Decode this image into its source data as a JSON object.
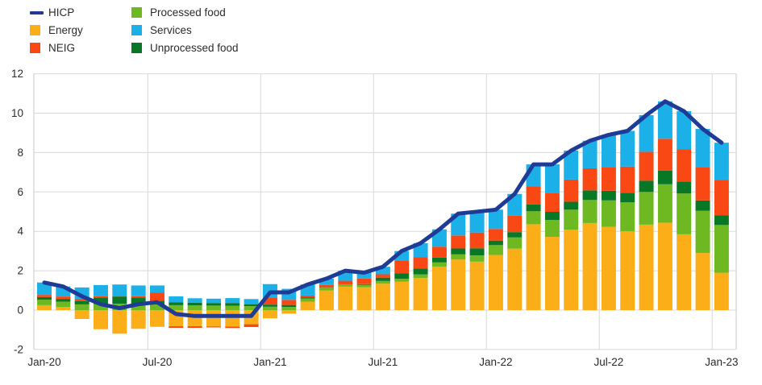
{
  "legend": {
    "items": [
      {
        "label": "HICP",
        "color": "#1E3C96",
        "swatch": "line"
      },
      {
        "label": "Energy",
        "color": "#FBAE17",
        "swatch": "square"
      },
      {
        "label": "NEIG",
        "color": "#F94814",
        "swatch": "square"
      },
      {
        "label": "Processed food",
        "color": "#6EB821",
        "swatch": "square"
      },
      {
        "label": "Services",
        "color": "#1CB0E9",
        "swatch": "square"
      },
      {
        "label": "Unprocessed food",
        "color": "#097826",
        "swatch": "square"
      }
    ]
  },
  "chart_data": {
    "type": "bar",
    "subtype": "stacked-bar-with-line",
    "title": "",
    "xlabel": "",
    "ylabel": "",
    "ylim": [
      -2,
      12
    ],
    "y_ticks": [
      -2,
      0,
      2,
      4,
      6,
      8,
      10,
      12
    ],
    "x_tick_labels": [
      "Jan-20",
      "Jul-20",
      "Jan-21",
      "Jul-21",
      "Jan-22",
      "Jul-22",
      "Jan-23"
    ],
    "grid": true,
    "legend_position": "top-left",
    "categories": [
      "Jan-20",
      "Feb-20",
      "Mar-20",
      "Apr-20",
      "May-20",
      "Jun-20",
      "Jul-20",
      "Aug-20",
      "Sep-20",
      "Oct-20",
      "Nov-20",
      "Dec-20",
      "Jan-21",
      "Feb-21",
      "Mar-21",
      "Apr-21",
      "May-21",
      "Jun-21",
      "Jul-21",
      "Aug-21",
      "Sep-21",
      "Oct-21",
      "Nov-21",
      "Dec-21",
      "Jan-22",
      "Feb-22",
      "Mar-22",
      "Apr-22",
      "May-22",
      "Jun-22",
      "Jul-22",
      "Aug-22",
      "Sep-22",
      "Oct-22",
      "Nov-22",
      "Dec-22",
      "Jan-23"
    ],
    "series": [
      {
        "name": "Energy",
        "type": "bar",
        "color": "#FBAE17",
        "values": [
          0.25,
          0.15,
          -0.45,
          -0.97,
          -1.2,
          -0.95,
          -0.85,
          -0.82,
          -0.82,
          -0.83,
          -0.84,
          -0.72,
          -0.42,
          -0.18,
          0.43,
          1.0,
          1.19,
          1.16,
          1.34,
          1.44,
          1.63,
          2.21,
          2.57,
          2.46,
          2.8,
          3.12,
          4.36,
          3.72,
          4.08,
          4.42,
          4.23,
          4.0,
          4.34,
          4.44,
          3.85,
          2.9,
          1.9
        ]
      },
      {
        "name": "Processed food",
        "type": "bar",
        "color": "#6EB821",
        "values": [
          0.28,
          0.28,
          0.29,
          0.31,
          0.32,
          0.31,
          0.28,
          0.25,
          0.24,
          0.23,
          0.22,
          0.2,
          0.17,
          0.16,
          0.16,
          0.14,
          0.12,
          0.12,
          0.14,
          0.15,
          0.18,
          0.21,
          0.26,
          0.32,
          0.5,
          0.57,
          0.66,
          0.86,
          1.02,
          1.17,
          1.34,
          1.47,
          1.66,
          1.95,
          2.07,
          2.14,
          2.42
        ]
      },
      {
        "name": "Unprocessed food",
        "type": "bar",
        "color": "#097826",
        "values": [
          0.13,
          0.14,
          0.16,
          0.33,
          0.37,
          0.33,
          0.2,
          0.15,
          0.13,
          0.13,
          0.14,
          0.1,
          0.11,
          0.1,
          0.06,
          0.02,
          0.0,
          0.04,
          0.17,
          0.27,
          0.3,
          0.25,
          0.3,
          0.36,
          0.23,
          0.27,
          0.35,
          0.41,
          0.4,
          0.49,
          0.49,
          0.49,
          0.57,
          0.69,
          0.61,
          0.53,
          0.5
        ]
      },
      {
        "name": "NEIG",
        "type": "bar",
        "color": "#F94814",
        "values": [
          0.11,
          0.12,
          0.12,
          0.07,
          0.04,
          0.06,
          0.4,
          -0.08,
          -0.08,
          -0.05,
          -0.07,
          -0.14,
          0.35,
          0.26,
          0.09,
          0.12,
          0.18,
          0.28,
          0.17,
          0.66,
          0.57,
          0.55,
          0.66,
          0.8,
          0.59,
          0.84,
          0.91,
          0.97,
          1.13,
          1.12,
          1.21,
          1.33,
          1.47,
          1.62,
          1.63,
          1.7,
          1.8
        ]
      },
      {
        "name": "Services",
        "type": "bar",
        "color": "#1CB0E9",
        "values": [
          0.63,
          0.51,
          0.58,
          0.56,
          0.57,
          0.55,
          0.37,
          0.3,
          0.23,
          0.22,
          0.25,
          0.26,
          0.69,
          0.56,
          0.56,
          0.32,
          0.51,
          0.3,
          0.38,
          0.48,
          0.72,
          0.88,
          1.11,
          1.06,
          0.98,
          1.1,
          1.12,
          1.44,
          1.47,
          1.4,
          1.63,
          1.81,
          1.86,
          1.9,
          1.94,
          1.93,
          1.88
        ]
      }
    ],
    "line_series": {
      "name": "HICP",
      "type": "line",
      "color": "#1E3C96",
      "values": [
        1.4,
        1.2,
        0.7,
        0.3,
        0.1,
        0.3,
        0.4,
        -0.2,
        -0.3,
        -0.3,
        -0.3,
        -0.3,
        0.9,
        0.9,
        1.3,
        1.6,
        2.0,
        1.9,
        2.2,
        3.0,
        3.4,
        4.1,
        4.9,
        5.0,
        5.1,
        5.9,
        7.4,
        7.4,
        8.1,
        8.6,
        8.9,
        9.1,
        9.9,
        10.6,
        10.1,
        9.2,
        8.5
      ]
    }
  }
}
